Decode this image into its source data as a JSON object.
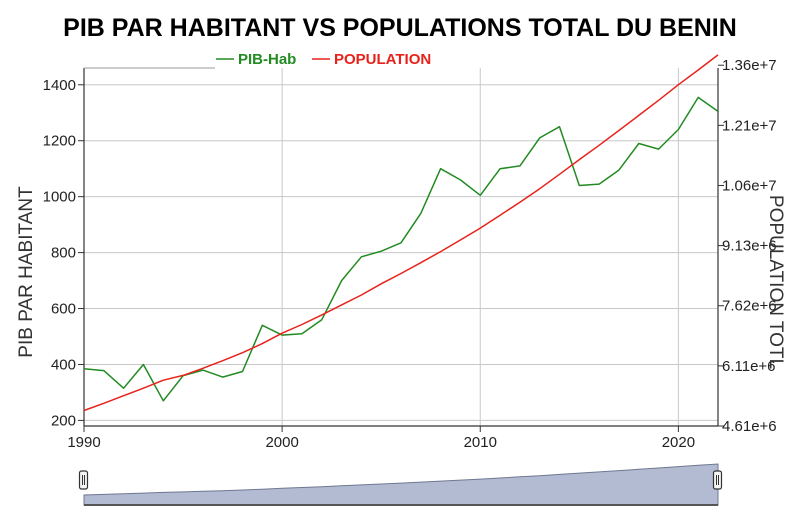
{
  "chart_data": {
    "type": "line",
    "title": "PIB PAR HABITANT VS POPULATIONS TOTAL DU BENIN",
    "ylabel_left": "PIB PAR HABITANT",
    "ylabel_right": "POPULATION TOTL",
    "x_ticks": [
      "1990",
      "2000",
      "2010",
      "2020"
    ],
    "y_left_ticks": [
      "200",
      "400",
      "600",
      "800",
      "1000",
      "1200",
      "1400"
    ],
    "y_right_ticks": [
      "4.61e+6",
      "6.11e+6",
      "7.62e+6",
      "9.13e+6",
      "1.06e+7",
      "1.21e+7",
      "1.36e+7"
    ],
    "xlim": [
      1990,
      2022
    ],
    "ylim_left": [
      180,
      1460
    ],
    "ylim_right": [
      4610000,
      13600000
    ],
    "grid": true,
    "legend_position": "top",
    "x": [
      1990,
      1991,
      1992,
      1993,
      1994,
      1995,
      1996,
      1997,
      1998,
      1999,
      2000,
      2001,
      2002,
      2003,
      2004,
      2005,
      2006,
      2007,
      2008,
      2009,
      2010,
      2011,
      2012,
      2013,
      2014,
      2015,
      2016,
      2017,
      2018,
      2019,
      2020,
      2021,
      2022
    ],
    "series": [
      {
        "name": "PIB-Hab",
        "axis": "left",
        "color": "#228b22",
        "values": [
          385,
          378,
          315,
          400,
          270,
          360,
          380,
          355,
          375,
          540,
          505,
          510,
          560,
          700,
          785,
          805,
          835,
          940,
          1100,
          1060,
          1005,
          1100,
          1110,
          1210,
          1250,
          1040,
          1045,
          1095,
          1190,
          1170,
          1240,
          1355,
          1305
        ]
      },
      {
        "name": "POPULATION",
        "axis": "right",
        "color": "#e8221a",
        "values": [
          5000000,
          5180000,
          5370000,
          5560000,
          5760000,
          5880000,
          6060000,
          6250000,
          6450000,
          6680000,
          6940000,
          7160000,
          7400000,
          7650000,
          7900000,
          8180000,
          8440000,
          8710000,
          8990000,
          9280000,
          9580000,
          9900000,
          10230000,
          10570000,
          10930000,
          11300000,
          11660000,
          12030000,
          12410000,
          12790000,
          13180000,
          13550000,
          13930000
        ]
      }
    ]
  },
  "colors": {
    "grid": "#c8c8c8",
    "range_fill": "#b3bbd2",
    "range_line": "#6e7891"
  }
}
